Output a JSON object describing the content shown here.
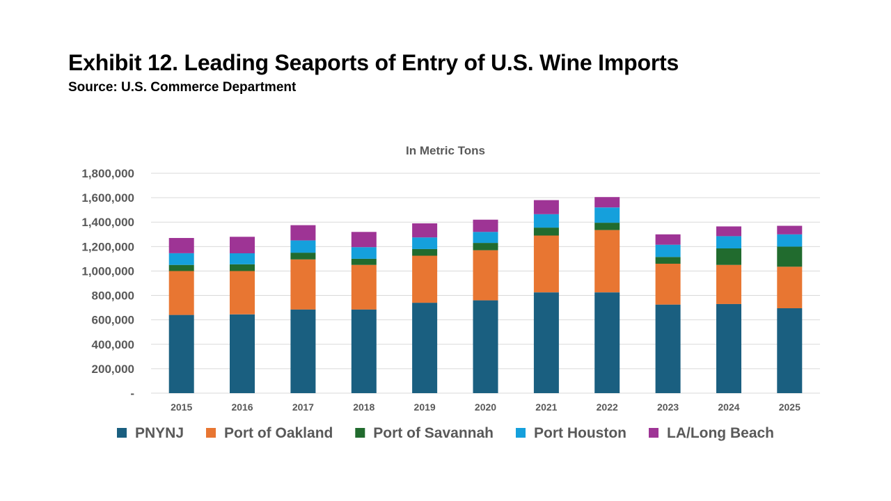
{
  "header": {
    "title": "Exhibit 12. Leading Seaports of Entry of U.S. Wine Imports",
    "source": "Source: U.S. Commerce Department"
  },
  "chart_data": {
    "type": "bar",
    "stacked": true,
    "title": "In Metric Tons",
    "xlabel": "",
    "ylabel": "",
    "ylim": [
      0,
      1800000
    ],
    "yticks": [
      0,
      200000,
      400000,
      600000,
      800000,
      1000000,
      1200000,
      1400000,
      1600000,
      1800000
    ],
    "ytick_labels": [
      "-",
      "200,000",
      "400,000",
      "600,000",
      "800,000",
      "1,000,000",
      "1,200,000",
      "1,400,000",
      "1,600,000",
      "1,800,000"
    ],
    "grid": true,
    "legend_position": "bottom",
    "categories": [
      "2015",
      "2016",
      "2017",
      "2018",
      "2019",
      "2020",
      "2021",
      "2022",
      "2023",
      "2024",
      "2025"
    ],
    "series": [
      {
        "name": "PNYNJ",
        "color": "#1a5f80",
        "values": [
          640000,
          645000,
          685000,
          685000,
          740000,
          760000,
          825000,
          825000,
          725000,
          730000,
          695000
        ]
      },
      {
        "name": "Port of Oakland",
        "color": "#e87632",
        "values": [
          360000,
          355000,
          410000,
          365000,
          385000,
          410000,
          465000,
          510000,
          335000,
          320000,
          340000
        ]
      },
      {
        "name": "Port of Savannah",
        "color": "#216b2e",
        "values": [
          50000,
          55000,
          55000,
          50000,
          55000,
          60000,
          65000,
          60000,
          55000,
          135000,
          165000
        ]
      },
      {
        "name": "Port Houston",
        "color": "#15a0dc",
        "values": [
          95000,
          90000,
          100000,
          95000,
          95000,
          90000,
          110000,
          125000,
          100000,
          100000,
          100000
        ]
      },
      {
        "name": "LA/Long Beach",
        "color": "#9e3495",
        "values": [
          125000,
          135000,
          125000,
          125000,
          115000,
          100000,
          115000,
          85000,
          85000,
          80000,
          70000
        ]
      }
    ]
  }
}
